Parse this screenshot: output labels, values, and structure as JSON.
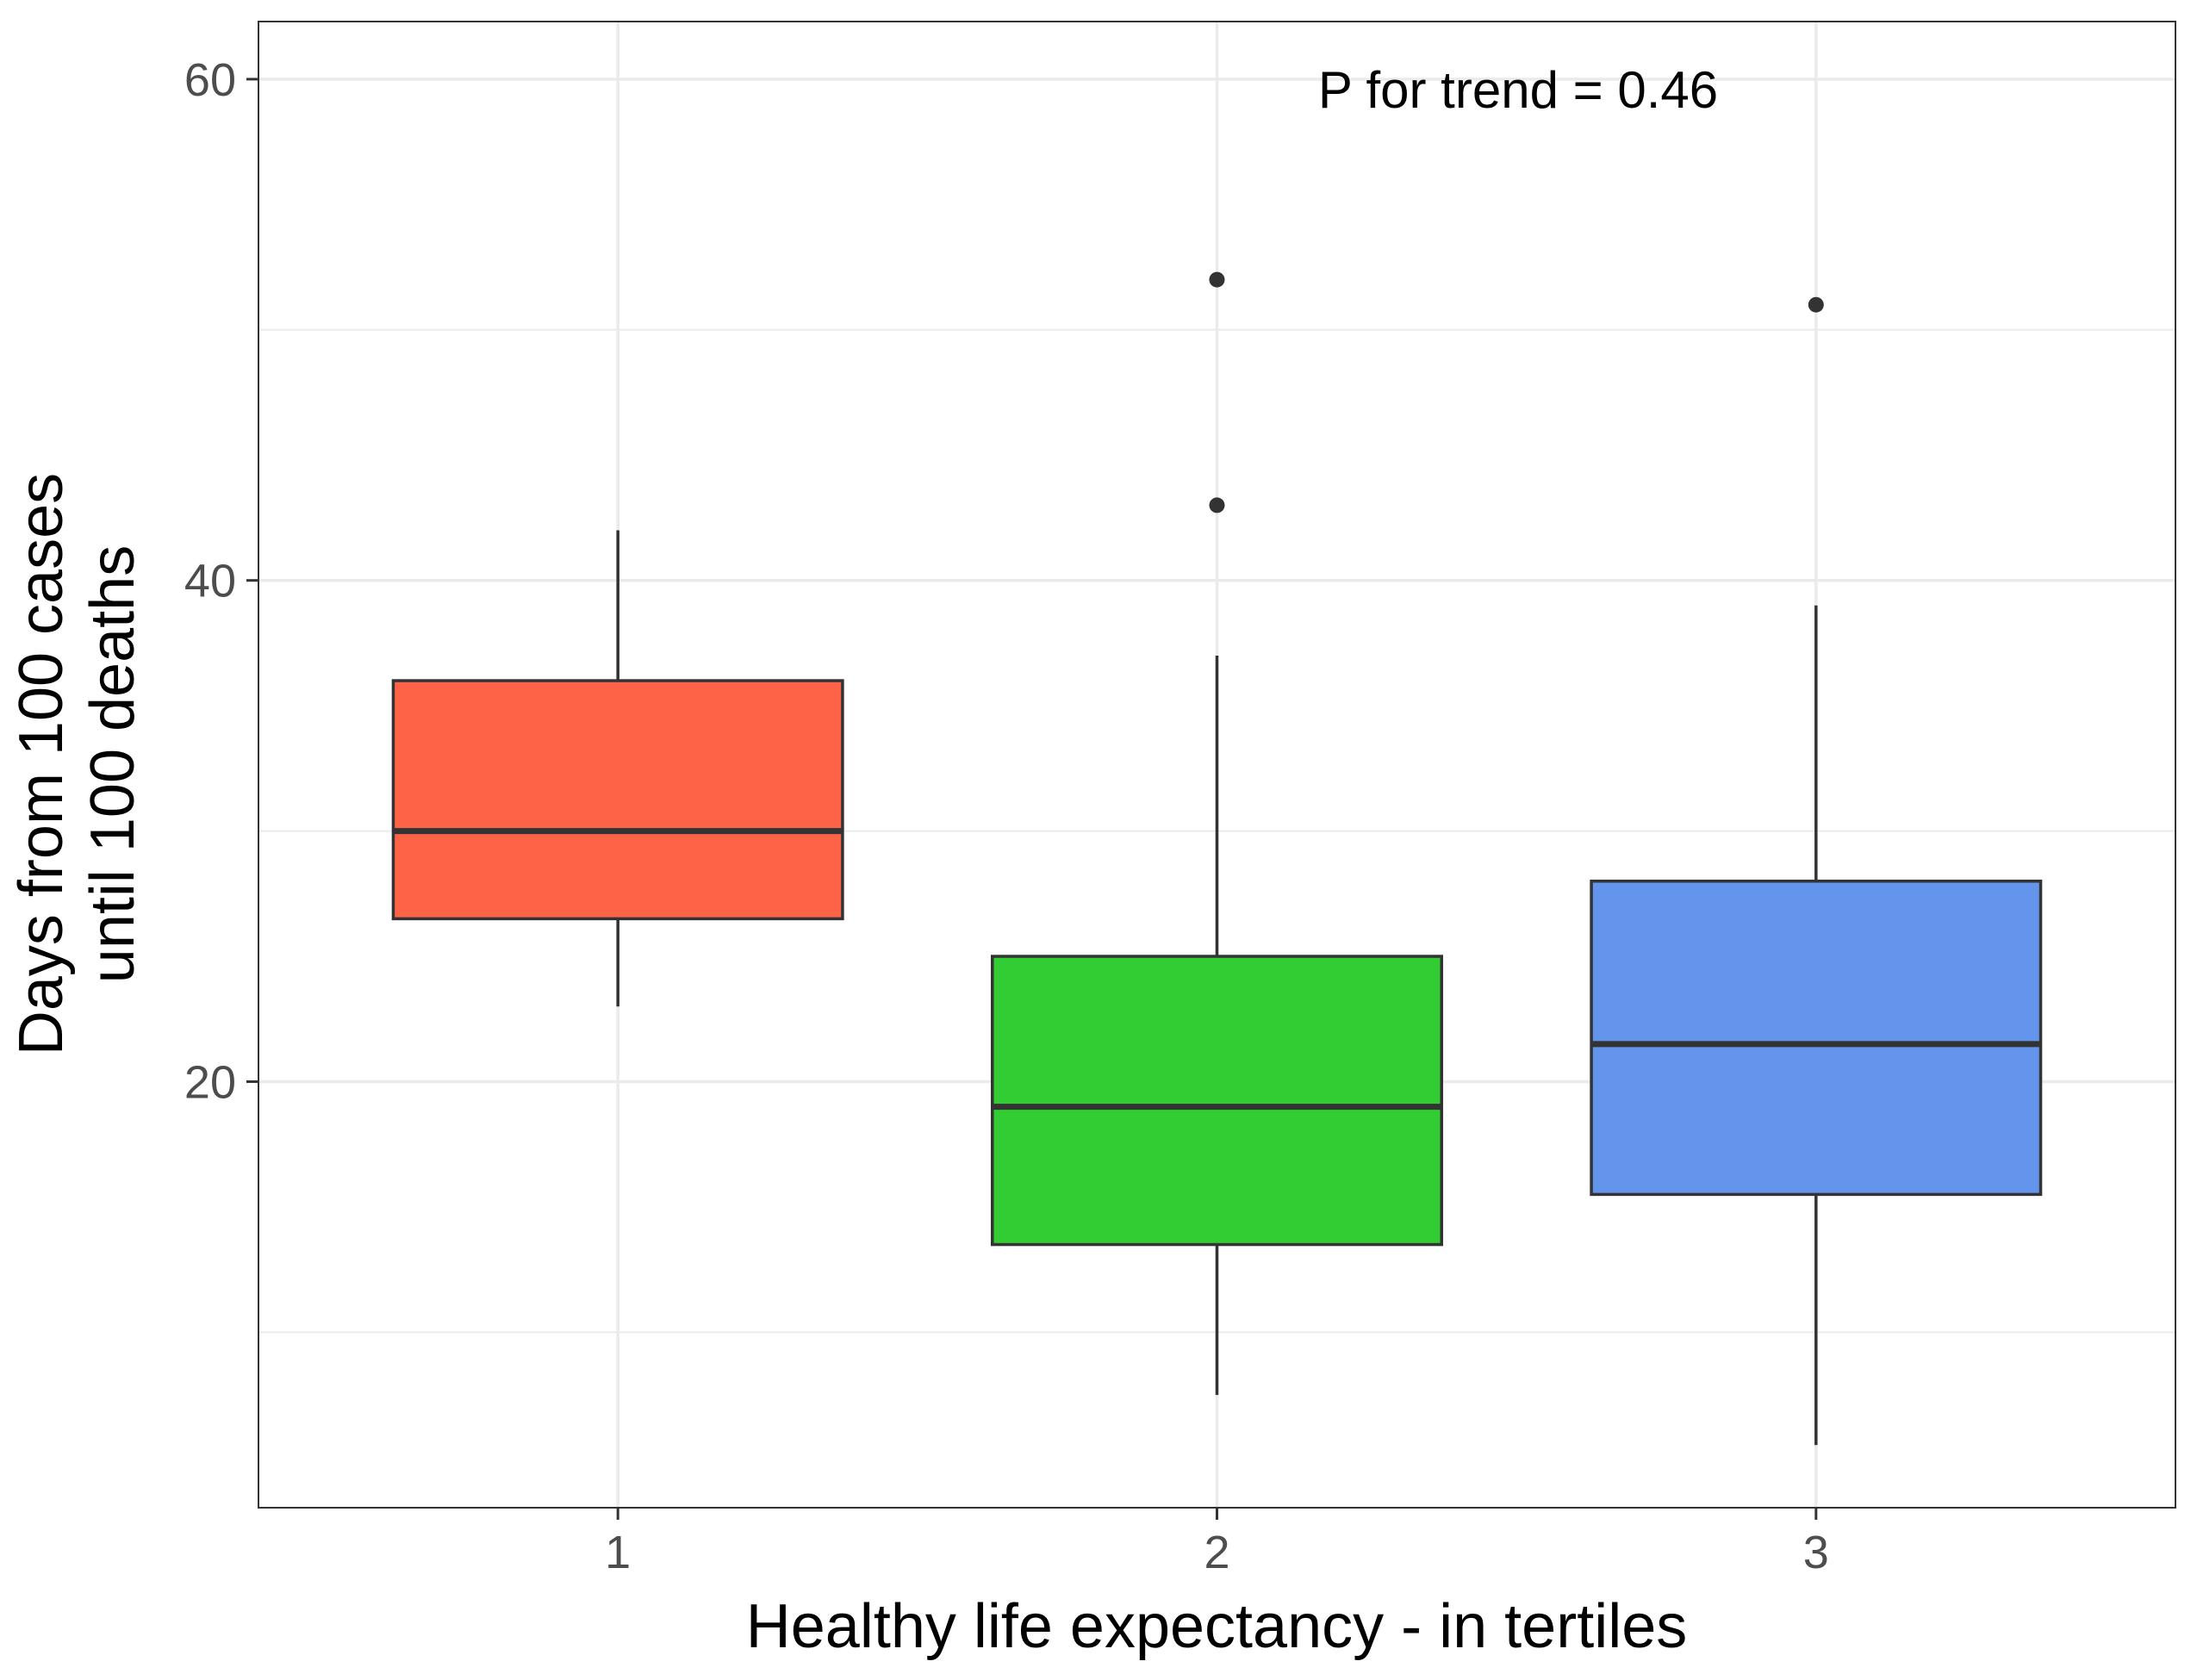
{
  "chart_data": {
    "type": "boxplot",
    "xlabel": "Healthy life expectancy - in tertiles",
    "ylabel_lines": [
      "Days from 100 cases",
      "until 100 deaths"
    ],
    "annotation": "P for trend = 0.46",
    "ylim": [
      3,
      62.3
    ],
    "y_ticks": [
      20,
      40,
      60
    ],
    "y_minor_ticks": [
      10,
      30,
      50
    ],
    "grid": true,
    "categories": [
      "1",
      "2",
      "3"
    ],
    "boxes": [
      {
        "category": "1",
        "whisker_low": 23,
        "q1": 26.5,
        "median": 30,
        "q3": 36,
        "whisker_high": 42,
        "outliers": [],
        "color": "#FF6347"
      },
      {
        "category": "2",
        "whisker_low": 7.5,
        "q1": 13.5,
        "median": 19,
        "q3": 25,
        "whisker_high": 37,
        "outliers": [
          43,
          52
        ],
        "color": "#32CD32"
      },
      {
        "category": "3",
        "whisker_low": 5.5,
        "q1": 15.5,
        "median": 21.5,
        "q3": 28,
        "whisker_high": 39,
        "outliers": [
          51
        ],
        "color": "#6495ED"
      }
    ]
  }
}
